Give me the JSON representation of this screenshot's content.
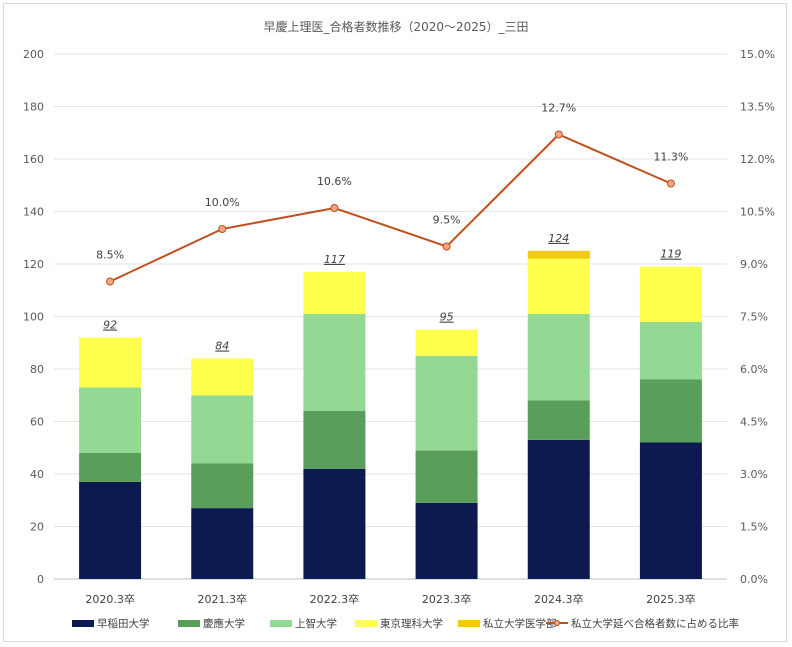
{
  "chart_data": {
    "type": "bar",
    "stacked": true,
    "title": "早慶上理医_合格者数推移（2020〜2025）_三田",
    "categories": [
      "2020.3卒",
      "2021.3卒",
      "2022.3卒",
      "2023.3卒",
      "2024.3卒",
      "2025.3卒"
    ],
    "series": [
      {
        "name": "早稲田大学",
        "color": "#0c1a4f",
        "values": [
          37,
          27,
          42,
          29,
          53,
          52
        ]
      },
      {
        "name": "慶應大学",
        "color": "#5a9e5c",
        "values": [
          11,
          17,
          22,
          20,
          15,
          24
        ]
      },
      {
        "name": "上智大学",
        "color": "#93d993",
        "values": [
          25,
          26,
          37,
          36,
          33,
          22
        ]
      },
      {
        "name": "東京理科大学",
        "color": "#ffff4d",
        "values": [
          19,
          14,
          16,
          10,
          21,
          21
        ]
      },
      {
        "name": "私立大学医学部",
        "color": "#f2cc0c",
        "values": [
          0,
          0,
          0,
          0,
          3,
          0
        ]
      }
    ],
    "totals": [
      "92",
      "84",
      "117",
      "95",
      "124",
      "119"
    ],
    "line_series": {
      "name": "私立大学延べ合格者数に占める比率",
      "color": "#c0501e",
      "values": [
        8.5,
        10.0,
        10.6,
        9.5,
        12.7,
        11.3
      ],
      "labels": [
        "8.5%",
        "10.0%",
        "10.6%",
        "9.5%",
        "12.7%",
        "11.3%"
      ],
      "axis": "right"
    },
    "y_left": {
      "min": 0,
      "max": 200,
      "ticks": [
        "0",
        "20",
        "40",
        "60",
        "80",
        "100",
        "120",
        "140",
        "160",
        "180",
        "200"
      ]
    },
    "y_right": {
      "min": 0,
      "max": 15,
      "ticks": [
        "0.0%",
        "1.5%",
        "3.0%",
        "4.5%",
        "6.0%",
        "7.5%",
        "9.0%",
        "10.5%",
        "12.0%",
        "13.5%",
        "15.0%"
      ]
    },
    "grid": true,
    "legend_position": "bottom"
  }
}
